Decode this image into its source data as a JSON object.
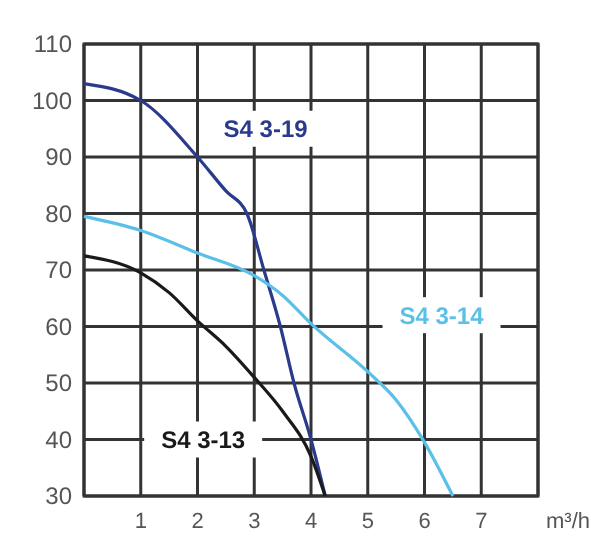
{
  "chart_data": {
    "type": "line",
    "xlabel": "m³/h",
    "xlim": [
      0,
      8
    ],
    "ylim": [
      30,
      110
    ],
    "xticks": [
      {
        "value": 0,
        "label": null
      },
      1,
      2,
      3,
      4,
      5,
      6,
      7,
      {
        "value": 8,
        "label": null
      }
    ],
    "yticks": [
      30,
      40,
      50,
      60,
      70,
      80,
      90,
      100,
      110
    ],
    "grid": true,
    "marker": "none",
    "line_style": "solid",
    "series": [
      {
        "name": "S4 3-19",
        "color": "#2a3a8c",
        "x": [
          0,
          1,
          2,
          2.5,
          2.87,
          3.17,
          3.46,
          3.7,
          4.0,
          4.25
        ],
        "values": [
          103,
          100,
          90,
          84,
          80,
          70,
          60,
          50,
          40,
          30
        ]
      },
      {
        "name": "S4 3-14",
        "color": "#5bc0e8",
        "x": [
          0,
          1,
          2,
          3,
          3.5,
          4,
          5,
          5.5,
          6,
          6.5
        ],
        "values": [
          79.5,
          77,
          73,
          69,
          65.5,
          60.5,
          52,
          47,
          39.5,
          30
        ]
      },
      {
        "name": "S4 3-13",
        "color": "#1a1a1a",
        "x": [
          0,
          1,
          1.5,
          2,
          2.5,
          3,
          3.5,
          4,
          4.25
        ],
        "values": [
          72.5,
          69.5,
          66,
          61,
          56.5,
          51,
          45,
          37,
          30
        ]
      }
    ]
  }
}
